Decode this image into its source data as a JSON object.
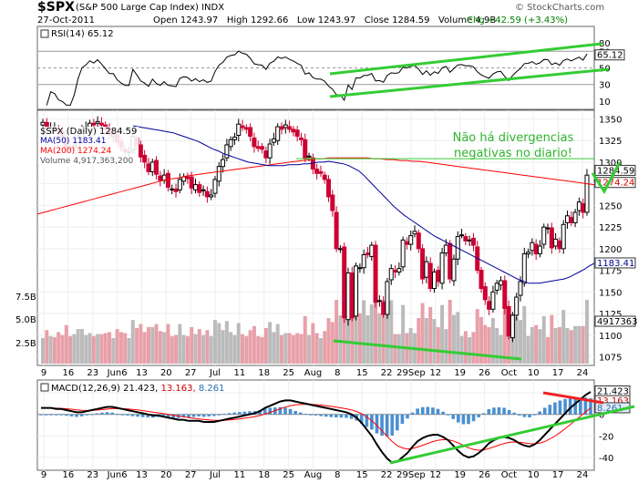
{
  "header": {
    "ticker": "$SPX",
    "name": "(S&P 500 Large Cap Index)",
    "exchange": "INDX",
    "date": "27-Oct-2011",
    "open_label": "Open",
    "open": "1243.97",
    "high_label": "High",
    "high": "1292.66",
    "low_label": "Low",
    "low": "1243.97",
    "close_label": "Close",
    "close": "1284.59",
    "volume_label": "Volume",
    "volume": "4.9B",
    "chg_label": "Chg",
    "chg": "+42.59 (+3.43%)",
    "chg_color": "#008000",
    "brand": "© StockCharts.com"
  },
  "rsi_panel": {
    "legend": "RSI(14) 65.12",
    "levels": [
      "80",
      "70",
      "50",
      "30",
      "10"
    ],
    "badge": "65.12"
  },
  "price_panel": {
    "legend_title": "$SPX (Daily) 1284.59",
    "ma50_label": "MA(50) 1183.41",
    "ma200_label": "MA(200) 1274.24",
    "volume_label": "Volume 4,917,363,200",
    "y_ticks": [
      "1350",
      "1325",
      "1300",
      "1275",
      "1250",
      "1225",
      "1200",
      "1175",
      "1150",
      "1125",
      "1100",
      "1075"
    ],
    "vol_ticks": [
      "7.5B",
      "5.0B",
      "2.5B"
    ],
    "badge_close": "1284.59",
    "badge_ma200": "1274.24",
    "badge_ma50": "1183.41",
    "badge_vol": "4917363",
    "annotation_line1": "Não há divergencias",
    "annotation_line2": "negativas no diario!"
  },
  "macd_panel": {
    "legend_name": "MACD(12,26,9)",
    "legend_v1": "21.423,",
    "legend_v2": "13.163,",
    "legend_v3": "8.261",
    "y_ticks": [
      "20",
      "0",
      "-20",
      "-40"
    ],
    "badge_macd": "21.423",
    "badge_signal": "13.163",
    "badge_hist": "8.261"
  },
  "x_axis_labels": [
    "9",
    "16",
    "23",
    "Jun6",
    "13",
    "20",
    "27",
    "Jul",
    "11",
    "18",
    "25",
    "Aug",
    "8",
    "15",
    "22",
    "29Sep",
    "12",
    "19",
    "26",
    "Oct",
    "10",
    "17",
    "24"
  ],
  "colors": {
    "up": "#000000",
    "down": "#cc0033",
    "ma50": "#000099",
    "ma200": "#ff0000",
    "annotation": "#33cc33",
    "vol_up": "#bbbbbb",
    "vol_down": "#e8a0a8",
    "macd": "#000000",
    "signal": "#ff0000",
    "hist": "#4a8fd0"
  },
  "chart_data": {
    "type": "candlestick",
    "title": "$SPX (Daily) 1284.59",
    "price_ylim": [
      1065,
      1360
    ],
    "x_labels": [
      "9",
      "16",
      "23",
      "Jun6",
      "13",
      "20",
      "27",
      "Jul",
      "11",
      "18",
      "25",
      "Aug",
      "8",
      "15",
      "22",
      "29Sep",
      "12",
      "19",
      "26",
      "Oct",
      "10",
      "17",
      "24"
    ],
    "closes": [
      1346,
      1338,
      1340,
      1339,
      1333,
      1330,
      1317,
      1315,
      1319,
      1328,
      1337,
      1340,
      1345,
      1343,
      1347,
      1343,
      1338,
      1332,
      1332,
      1323,
      1317,
      1312,
      1312,
      1330,
      1320,
      1306,
      1300,
      1289,
      1300,
      1286,
      1279,
      1285,
      1271,
      1269,
      1266,
      1280,
      1283,
      1281,
      1270,
      1274,
      1265,
      1268,
      1260,
      1262,
      1280,
      1295,
      1303,
      1320,
      1326,
      1329,
      1344,
      1340,
      1338,
      1330,
      1318,
      1316,
      1315,
      1305,
      1321,
      1327,
      1341,
      1338,
      1343,
      1338,
      1335,
      1330,
      1326,
      1304,
      1307,
      1292,
      1287,
      1287,
      1280,
      1260,
      1244,
      1200,
      1200,
      1120,
      1172,
      1120,
      1180,
      1178,
      1193,
      1193,
      1204,
      1138,
      1140,
      1124,
      1162,
      1177,
      1173,
      1177,
      1210,
      1205,
      1215,
      1220,
      1200,
      1165,
      1185,
      1154,
      1173,
      1162,
      1195,
      1204,
      1165,
      1188,
      1214,
      1216,
      1209,
      1210,
      1204,
      1175,
      1154,
      1141,
      1130,
      1150,
      1160,
      1163,
      1131,
      1099,
      1123,
      1144,
      1162,
      1194,
      1196,
      1207,
      1194,
      1203,
      1225,
      1224,
      1201,
      1211,
      1200,
      1228,
      1238,
      1230,
      1242,
      1254,
      1242,
      1285
    ],
    "ma50": [
      1342,
      1341,
      1340,
      1339,
      1338,
      1337,
      1336,
      1335,
      1334,
      1332,
      1330,
      1328,
      1326,
      1324,
      1321,
      1318,
      1315,
      1313,
      1310,
      1308,
      1306,
      1304,
      1302,
      1300,
      1299,
      1298,
      1297,
      1296,
      1296,
      1296,
      1296,
      1297,
      1297,
      1297,
      1298,
      1298,
      1299,
      1300,
      1300,
      1301,
      1300,
      1299,
      1298,
      1296,
      1293,
      1290,
      1285,
      1279,
      1273,
      1267,
      1261,
      1255,
      1249,
      1244,
      1239,
      1235,
      1231,
      1227,
      1223,
      1219,
      1215,
      1212,
      1209,
      1206,
      1203,
      1200,
      1197,
      1194,
      1191,
      1188,
      1185,
      1182,
      1179,
      1176,
      1173,
      1170,
      1167,
      1164,
      1162,
      1160,
      1160,
      1160,
      1161,
      1162,
      1163,
      1164,
      1165,
      1167,
      1170,
      1173,
      1176,
      1180,
      1183
    ],
    "ma200": [
      1240,
      1242,
      1244,
      1246,
      1248,
      1250,
      1252,
      1254,
      1256,
      1258,
      1260,
      1262,
      1264,
      1266,
      1268,
      1270,
      1272,
      1274,
      1276,
      1278,
      1280,
      1281,
      1282,
      1284,
      1285,
      1286,
      1287,
      1288,
      1289,
      1290,
      1291,
      1292,
      1293,
      1294,
      1295,
      1296,
      1297,
      1298,
      1299,
      1300,
      1301,
      1302,
      1303,
      1304,
      1304,
      1305,
      1305,
      1305,
      1305,
      1305,
      1305,
      1305,
      1304,
      1304,
      1303,
      1303,
      1302,
      1302,
      1301,
      1301,
      1300,
      1299,
      1298,
      1297,
      1296,
      1295,
      1294,
      1293,
      1292,
      1291,
      1290,
      1289,
      1288,
      1287,
      1286,
      1285,
      1284,
      1283,
      1282,
      1281,
      1280,
      1279,
      1278,
      1277,
      1276,
      1275,
      1274
    ],
    "rsi_ylim": [
      0,
      100
    ],
    "rsi_levels": [
      30,
      50,
      70
    ],
    "rsi_last": 65.12,
    "volume_ticks": [
      "2.5B",
      "5.0B",
      "7.5B"
    ],
    "volume_last": 4917363200,
    "macd_ylim": [
      -52,
      32
    ],
    "macd_last": 21.423,
    "signal_last": 13.163,
    "hist_last": 8.261,
    "macd": [
      6,
      6,
      6,
      5,
      5,
      4,
      3,
      2,
      2,
      3,
      4,
      5,
      6,
      7,
      7,
      6,
      5,
      4,
      3,
      2,
      1,
      0,
      -1,
      -1,
      -2,
      -3,
      -4,
      -5,
      -5,
      -6,
      -6,
      -6,
      -7,
      -7,
      -7,
      -6,
      -5,
      -4,
      -3,
      -2,
      -1,
      0,
      1,
      3,
      6,
      8,
      10,
      12,
      13,
      13,
      12,
      11,
      10,
      9,
      8,
      7,
      6,
      5,
      4,
      3,
      2,
      0,
      -3,
      -8,
      -14,
      -20,
      -28,
      -35,
      -41,
      -45,
      -44,
      -40,
      -36,
      -30,
      -25,
      -22,
      -20,
      -19,
      -19,
      -21,
      -24,
      -29,
      -34,
      -38,
      -40,
      -39,
      -36,
      -32,
      -27,
      -24,
      -22,
      -21,
      -22,
      -24,
      -27,
      -29,
      -30,
      -28,
      -24,
      -19,
      -14,
      -9,
      -4,
      1,
      6,
      10,
      14,
      18,
      21
    ]
  }
}
